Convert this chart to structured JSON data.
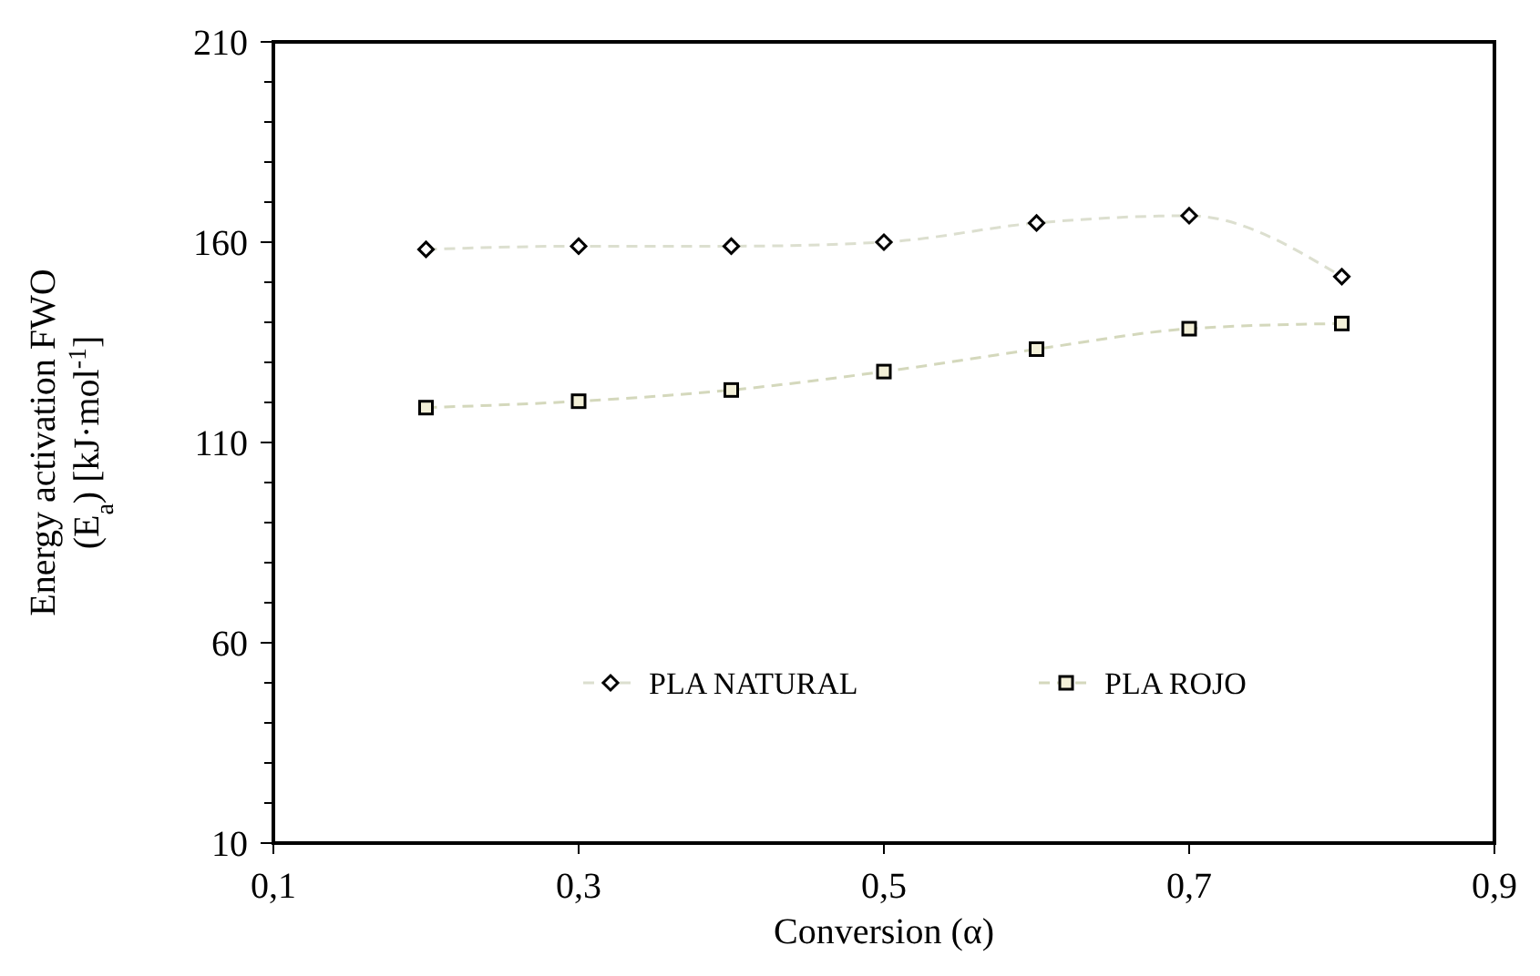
{
  "chart_data": {
    "type": "line",
    "xlabel": "Conversion (α)",
    "ylabel": "Energy activation FWO\n(E$_{a}$) [kJ·mol$^{-1}$]",
    "x": [
      0.2,
      0.3,
      0.4,
      0.5,
      0.6,
      0.7,
      0.8
    ],
    "series": [
      {
        "name": "PLA NATURAL",
        "color": "#dcdfcf",
        "marker": "diamond",
        "values": [
          158.2,
          159.0,
          159.0,
          160.0,
          164.8,
          166.6,
          151.4
        ]
      },
      {
        "name": "PLA ROJO",
        "color": "#d4d8bc",
        "marker": "square",
        "values": [
          118.7,
          120.3,
          123.1,
          127.7,
          133.3,
          138.4,
          139.7
        ]
      }
    ],
    "xlim": [
      0.1,
      0.9
    ],
    "xticks": [
      {
        "value": 0.1,
        "label": "0,1"
      },
      {
        "value": 0.3,
        "label": "0,3"
      },
      {
        "value": 0.5,
        "label": "0,5"
      },
      {
        "value": 0.7,
        "label": "0,7"
      },
      {
        "value": 0.9,
        "label": "0,9"
      }
    ],
    "ylim": [
      10,
      210
    ],
    "yticks": [
      10,
      {
        "value": 20,
        "label": null
      },
      {
        "value": 30,
        "label": null
      },
      {
        "value": 40,
        "label": null
      },
      {
        "value": 50,
        "label": null
      },
      60,
      {
        "value": 70,
        "label": null
      },
      {
        "value": 80,
        "label": null
      },
      {
        "value": 90,
        "label": null
      },
      {
        "value": 100,
        "label": null
      },
      110,
      {
        "value": 120,
        "label": null
      },
      {
        "value": 130,
        "label": null
      },
      {
        "value": 140,
        "label": null
      },
      {
        "value": 150,
        "label": null
      },
      160,
      {
        "value": 170,
        "label": null
      },
      {
        "value": 180,
        "label": null
      },
      {
        "value": 190,
        "label": null
      },
      {
        "value": 200,
        "label": null
      },
      210
    ],
    "line_style": "dashed",
    "legend": "bottom",
    "grid": false
  }
}
